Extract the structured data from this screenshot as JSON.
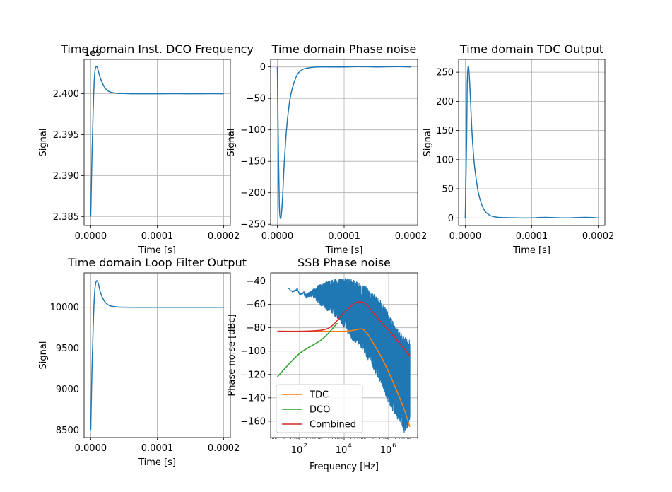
{
  "chart_data": [
    {
      "type": "line",
      "title": "Time domain Inst. DCO Frequency",
      "xlabel": "Time [s]",
      "ylabel": "Signal",
      "offset_label": "1e9",
      "xlim": [
        -1e-05,
        0.00021
      ],
      "ylim": [
        2.3839,
        2.4042
      ],
      "xticks": [
        0,
        0.0001,
        0.0002
      ],
      "xtick_labels": [
        "0.0000",
        "0.0001",
        "0.0002"
      ],
      "yticks": [
        2.385,
        2.39,
        2.395,
        2.4
      ],
      "ytick_labels": [
        "2.385",
        "2.390",
        "2.395",
        "2.400"
      ],
      "grid": true,
      "series": [
        {
          "color": "#1f77b4",
          "x": [
            0,
            2e-06,
            4e-06,
            6e-06,
            8e-06,
            1e-05,
            1.2e-05,
            1.5e-05,
            2e-05,
            2.5e-05,
            3e-05,
            4e-05,
            5e-05,
            6e-05,
            8e-05,
            0.0001,
            0.00012,
            0.00015,
            0.00018,
            0.0002
          ],
          "y": [
            2.385,
            2.393,
            2.399,
            2.4025,
            2.4033,
            2.4032,
            2.4026,
            2.4018,
            2.4009,
            2.4004,
            2.4002,
            2.40005,
            2.40003,
            2.4,
            2.4,
            2.4,
            2.40001,
            2.4,
            2.40001,
            2.4
          ]
        }
      ]
    },
    {
      "type": "line",
      "title": "Time domain Phase noise",
      "xlabel": "Time [s]",
      "ylabel": "Signal",
      "xlim": [
        -1e-05,
        0.00021
      ],
      "ylim": [
        -252,
        12
      ],
      "xticks": [
        0,
        0.0001,
        0.0002
      ],
      "xtick_labels": [
        "0.0000",
        "0.0001",
        "0.0002"
      ],
      "yticks": [
        0,
        -50,
        -100,
        -150,
        -200,
        -250
      ],
      "ytick_labels": [
        "0",
        "−50",
        "−100",
        "−150",
        "−200",
        "−250"
      ],
      "grid": true,
      "series": [
        {
          "color": "#1f77b4",
          "x": [
            0,
            1.5e-06,
            3e-06,
            4.5e-06,
            6e-06,
            8e-06,
            1e-05,
            1.3e-05,
            1.6e-05,
            2e-05,
            2.5e-05,
            3e-05,
            3.5e-05,
            4e-05,
            5e-05,
            6e-05,
            8e-05,
            0.0001,
            0.00012,
            0.00015,
            0.00018,
            0.0002
          ],
          "y": [
            0,
            -120,
            -220,
            -240,
            -235,
            -205,
            -160,
            -110,
            -75,
            -45,
            -25,
            -12,
            -6,
            -3,
            -1,
            0,
            0,
            0,
            0.5,
            0,
            0.5,
            0
          ]
        }
      ]
    },
    {
      "type": "line",
      "title": "Time domain TDC Output",
      "xlabel": "Time [s]",
      "ylabel": "Signal",
      "xlim": [
        -1e-05,
        0.00021
      ],
      "ylim": [
        -13,
        272
      ],
      "xticks": [
        0,
        0.0001,
        0.0002
      ],
      "xtick_labels": [
        "0.0000",
        "0.0001",
        "0.0002"
      ],
      "yticks": [
        0,
        50,
        100,
        150,
        200,
        250
      ],
      "ytick_labels": [
        "0",
        "50",
        "100",
        "150",
        "200",
        "250"
      ],
      "grid": true,
      "series": [
        {
          "color": "#1f77b4",
          "x": [
            0,
            2e-06,
            3e-06,
            4.5e-06,
            6e-06,
            8e-06,
            1e-05,
            1.3e-05,
            1.6e-05,
            2e-05,
            2.5e-05,
            3e-05,
            3.5e-05,
            4e-05,
            5e-05,
            6e-05,
            8e-05,
            0.0001,
            0.00012,
            0.00015,
            0.00018,
            0.0002
          ],
          "y": [
            0,
            130,
            230,
            260,
            245,
            200,
            150,
            100,
            70,
            42,
            22,
            11,
            6,
            3,
            1,
            0.5,
            0,
            0,
            1,
            0,
            1,
            0
          ]
        }
      ]
    },
    {
      "type": "line",
      "title": "Time domain Loop Filter Output",
      "xlabel": "Time [s]",
      "ylabel": "Signal",
      "xlim": [
        -1e-05,
        0.00021
      ],
      "ylim": [
        8410,
        10420
      ],
      "xticks": [
        0,
        0.0001,
        0.0002
      ],
      "xtick_labels": [
        "0.0000",
        "0.0001",
        "0.0002"
      ],
      "yticks": [
        8500,
        9000,
        9500,
        10000
      ],
      "ytick_labels": [
        "8500",
        "9000",
        "9500",
        "10000"
      ],
      "grid": true,
      "series": [
        {
          "color": "#1f77b4",
          "x": [
            0,
            2e-06,
            4e-06,
            6e-06,
            8e-06,
            1e-05,
            1.2e-05,
            1.5e-05,
            2e-05,
            2.5e-05,
            3e-05,
            4e-05,
            5e-05,
            6e-05,
            8e-05,
            0.0001,
            0.00012,
            0.00015,
            0.00018,
            0.0002
          ],
          "y": [
            8500,
            9300,
            9850,
            10200,
            10310,
            10320,
            10270,
            10170,
            10080,
            10035,
            10015,
            10004,
            10001,
            10000,
            10000,
            10000,
            10000,
            10000,
            10000,
            10000
          ]
        }
      ]
    },
    {
      "type": "line",
      "title": "SSB Phase noise",
      "xlabel": "Frequency [Hz]",
      "ylabel": "Phase noise [dBc]",
      "xscale": "log",
      "xlim": [
        5,
        20000000
      ],
      "ylim": [
        -174,
        -33
      ],
      "xticks": [
        100,
        10000,
        1000000
      ],
      "xtick_labels": [
        {
          "base": "10",
          "exp": "2"
        },
        {
          "base": "10",
          "exp": "4"
        },
        {
          "base": "10",
          "exp": "6"
        }
      ],
      "yticks": [
        -40,
        -60,
        -80,
        -100,
        -120,
        -140,
        -160
      ],
      "ytick_labels": [
        "−40",
        "−60",
        "−80",
        "−100",
        "−120",
        "−140",
        "−160"
      ],
      "grid": true,
      "legend": {
        "position": "lower-left",
        "entries": [
          "TDC",
          "DCO",
          "Combined"
        ]
      },
      "series": [
        {
          "name": "",
          "color": "#1f77b4",
          "style": "noisy-envelope",
          "x": [
            30,
            50,
            80,
            100,
            150,
            200,
            300,
            400,
            600,
            1000,
            2000,
            5000,
            10000,
            20000,
            50000,
            100000,
            200000,
            500000,
            1000000,
            2000000,
            5000000,
            9000000
          ],
          "upper": [
            -46,
            -49,
            -47,
            -50,
            -48,
            -51,
            -49,
            -47,
            -44,
            -42,
            -40,
            -38,
            -37,
            -38,
            -42,
            -45,
            -50,
            -58,
            -68,
            -78,
            -88,
            -90
          ],
          "lower": [
            -46,
            -49,
            -47,
            -53,
            -52,
            -55,
            -53,
            -54,
            -58,
            -62,
            -66,
            -72,
            -80,
            -90,
            -95,
            -105,
            -115,
            -130,
            -145,
            -155,
            -170,
            -165
          ]
        },
        {
          "name": "TDC",
          "color": "#ff7f0e",
          "x": [
            10,
            100,
            1000,
            10000,
            30000,
            60000,
            100000,
            200000,
            500000,
            1000000,
            2000000,
            5000000,
            9000000
          ],
          "y": [
            -83,
            -83,
            -83,
            -83,
            -82,
            -81,
            -84,
            -93,
            -106,
            -118,
            -131,
            -150,
            -165
          ]
        },
        {
          "name": "DCO",
          "color": "#2ca02c",
          "x": [
            10,
            100,
            1000,
            5000
          ],
          "y": [
            -122,
            -102,
            -90,
            -76
          ]
        },
        {
          "name": "Combined",
          "color": "#d62728",
          "x": [
            10,
            100,
            1000,
            3000,
            10000,
            30000,
            60000,
            100000,
            200000,
            500000,
            1000000,
            3000000,
            9000000
          ],
          "y": [
            -83,
            -83,
            -82,
            -78,
            -67,
            -59,
            -58,
            -60,
            -67,
            -76,
            -82,
            -93,
            -104
          ]
        }
      ]
    }
  ]
}
